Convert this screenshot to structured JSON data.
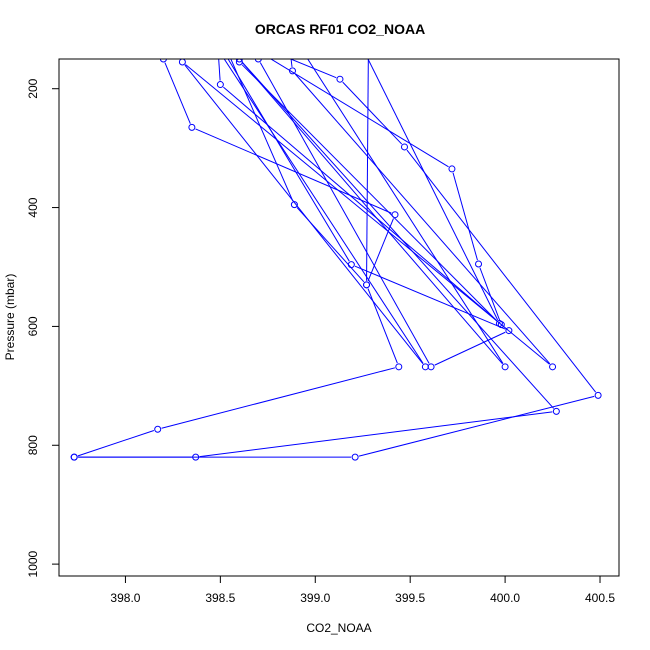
{
  "chart_data": {
    "type": "line",
    "title": "ORCAS RF01 CO2_NOAA",
    "xlabel": "CO2_NOAA",
    "ylabel": "Pressure (mbar)",
    "xlim": [
      397.65,
      400.6
    ],
    "ylim": [
      1020,
      150
    ],
    "y_reversed": true,
    "x_ticks": [
      398.0,
      398.5,
      399.0,
      399.5,
      400.0,
      400.5
    ],
    "x_tick_labels": [
      "398.0",
      "398.5",
      "399.0",
      "399.5",
      "400.0",
      "400.5"
    ],
    "y_ticks": [
      200,
      400,
      600,
      800,
      1000
    ],
    "y_tick_labels": [
      "200",
      "400",
      "600",
      "800",
      "1000"
    ],
    "grid": false,
    "color": "#0000ff",
    "series": [
      {
        "points": [
          [
            398.2,
            150
          ],
          [
            398.35,
            265
          ],
          [
            399.42,
            412
          ],
          [
            399.27,
            530
          ],
          [
            399.44,
            668
          ],
          [
            398.17,
            773
          ],
          [
            397.73,
            820
          ],
          [
            399.21,
            820
          ],
          [
            400.49,
            716
          ],
          [
            399.47,
            298
          ],
          [
            399.13,
            184
          ],
          [
            398.55,
            108
          ],
          [
            399.72,
            335
          ],
          [
            399.86,
            495
          ],
          [
            399.98,
            597
          ],
          [
            398.5,
            193
          ],
          [
            398.48,
            95
          ],
          [
            398.89,
            395
          ],
          [
            399.27,
            530
          ],
          [
            399.28,
            128
          ],
          [
            398.4,
            75
          ],
          [
            399.19,
            496
          ],
          [
            400.02,
            607
          ],
          [
            399.61,
            668
          ],
          [
            398.7,
            150
          ]
        ]
      },
      {
        "points": [
          [
            398.9,
            120
          ],
          [
            400.0,
            668
          ],
          [
            398.6,
            150
          ],
          [
            400.27,
            743
          ],
          [
            398.37,
            820
          ],
          [
            397.73,
            820
          ]
        ]
      },
      {
        "points": [
          [
            398.85,
            90
          ],
          [
            398.88,
            170
          ],
          [
            400.25,
            668
          ],
          [
            398.3,
            155
          ],
          [
            399.58,
            668
          ],
          [
            398.5,
            140
          ],
          [
            399.2,
            100
          ],
          [
            399.97,
            595
          ],
          [
            398.6,
            155
          ]
        ]
      }
    ]
  }
}
